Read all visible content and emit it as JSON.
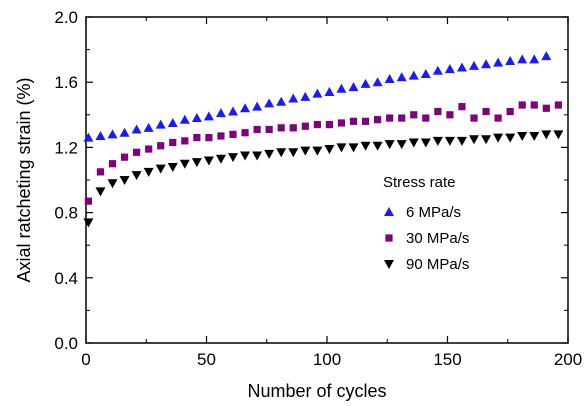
{
  "chart_data": {
    "type": "scatter",
    "xlabel": "Number of cycles",
    "ylabel": "Axial ratcheting strain (%)",
    "xlim": [
      0,
      200
    ],
    "ylim": [
      0.0,
      2.0
    ],
    "xticks": [
      0,
      50,
      100,
      150,
      200
    ],
    "xtick_labels": [
      "0",
      "50",
      "100",
      "150",
      "200"
    ],
    "yticks": [
      0.0,
      0.4,
      0.8,
      1.2,
      1.6,
      2.0
    ],
    "ytick_labels": [
      "0.0",
      "0.4",
      "0.8",
      "1.2",
      "1.6",
      "2.0"
    ],
    "grid": false,
    "legend": {
      "title": "Stress rate",
      "placement": "center-right"
    },
    "series": [
      {
        "name": "6 MPa/s",
        "marker": "triangle-up",
        "color": "#1a1aff",
        "x": [
          1,
          6,
          11,
          16,
          21,
          26,
          31,
          36,
          41,
          46,
          51,
          56,
          61,
          66,
          71,
          76,
          81,
          86,
          91,
          96,
          101,
          106,
          111,
          116,
          121,
          126,
          131,
          136,
          141,
          146,
          151,
          156,
          161,
          166,
          171,
          176,
          181,
          186,
          191
        ],
        "y": [
          1.26,
          1.27,
          1.28,
          1.29,
          1.31,
          1.32,
          1.34,
          1.35,
          1.37,
          1.38,
          1.39,
          1.41,
          1.42,
          1.44,
          1.45,
          1.47,
          1.48,
          1.5,
          1.51,
          1.53,
          1.54,
          1.56,
          1.57,
          1.59,
          1.6,
          1.62,
          1.63,
          1.64,
          1.65,
          1.67,
          1.68,
          1.69,
          1.7,
          1.71,
          1.72,
          1.73,
          1.74,
          1.74,
          1.76
        ]
      },
      {
        "name": "30 MPa/s",
        "marker": "square",
        "color": "#800080",
        "x": [
          1,
          6,
          11,
          16,
          21,
          26,
          31,
          36,
          41,
          46,
          51,
          56,
          61,
          66,
          71,
          76,
          81,
          86,
          91,
          96,
          101,
          106,
          111,
          116,
          121,
          126,
          131,
          136,
          141,
          146,
          151,
          156,
          161,
          166,
          171,
          176,
          181,
          186,
          191,
          196
        ],
        "y": [
          0.87,
          1.05,
          1.1,
          1.14,
          1.17,
          1.19,
          1.21,
          1.23,
          1.24,
          1.26,
          1.26,
          1.27,
          1.28,
          1.29,
          1.31,
          1.31,
          1.32,
          1.32,
          1.33,
          1.34,
          1.34,
          1.35,
          1.36,
          1.36,
          1.37,
          1.38,
          1.38,
          1.4,
          1.38,
          1.42,
          1.4,
          1.45,
          1.38,
          1.42,
          1.38,
          1.42,
          1.46,
          1.46,
          1.44,
          1.46
        ]
      },
      {
        "name": "90 MPa/s",
        "marker": "triangle-down",
        "color": "#000000",
        "x": [
          1,
          6,
          11,
          16,
          21,
          26,
          31,
          36,
          41,
          46,
          51,
          56,
          61,
          66,
          71,
          76,
          81,
          86,
          91,
          96,
          101,
          106,
          111,
          116,
          121,
          126,
          131,
          136,
          141,
          146,
          151,
          156,
          161,
          166,
          171,
          176,
          181,
          186,
          191,
          196
        ],
        "y": [
          0.74,
          0.93,
          0.98,
          1.0,
          1.03,
          1.05,
          1.07,
          1.08,
          1.1,
          1.11,
          1.12,
          1.13,
          1.14,
          1.15,
          1.15,
          1.16,
          1.17,
          1.17,
          1.18,
          1.18,
          1.19,
          1.2,
          1.2,
          1.21,
          1.21,
          1.22,
          1.22,
          1.23,
          1.23,
          1.24,
          1.24,
          1.24,
          1.25,
          1.25,
          1.26,
          1.26,
          1.27,
          1.27,
          1.28,
          1.28
        ]
      }
    ]
  }
}
